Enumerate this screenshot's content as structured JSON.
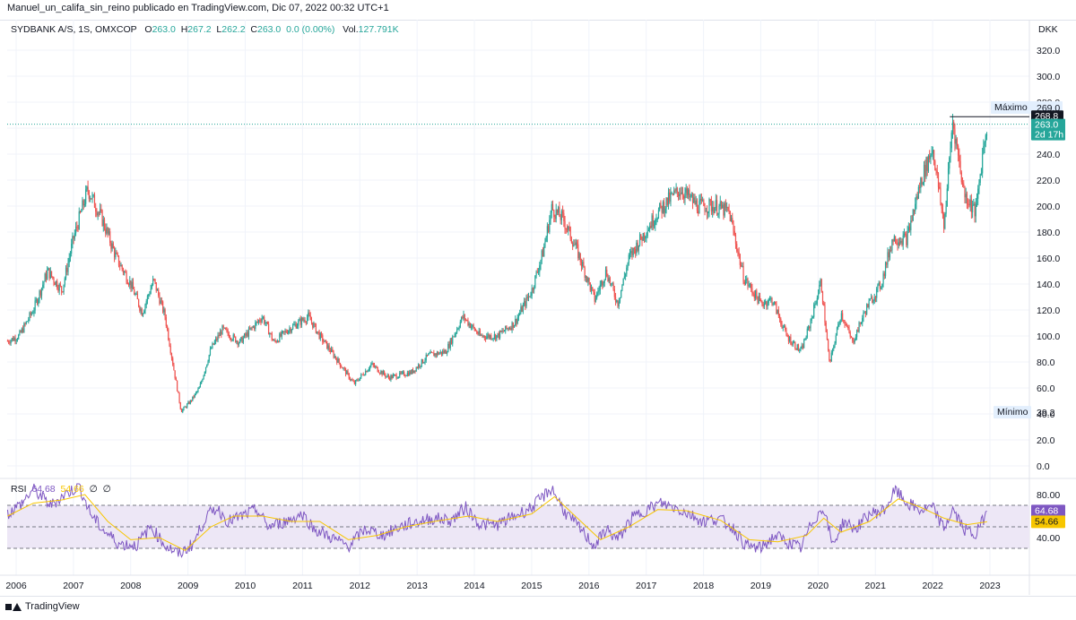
{
  "header": {
    "publisher_line": "Manuel_un_califa_sin_reino publicado en TradingView.com, Dic 07, 2022 00:32 UTC+1"
  },
  "legend": {
    "symbol": "SYDBANK A/S, 1S, OMXCOP",
    "o_label": "O",
    "o_value": "263.0",
    "h_label": "H",
    "h_value": "267.2",
    "l_label": "L",
    "l_value": "262.2",
    "c_label": "C",
    "c_value": "263.0",
    "change": "0.0 (0.00%)",
    "vol_label": "Vol.",
    "vol_value": "127.791K"
  },
  "rsi_legend": {
    "name": "RSI",
    "value": "64.68",
    "ma_value": "54.66",
    "ma_type": "∅",
    "extra": "∅"
  },
  "footer": {
    "brand": "TradingView"
  },
  "colors": {
    "up": "#26a69a",
    "down": "#ef5350",
    "rsi": "#7e57c2",
    "rsi_ma": "#f7c600",
    "band": "#ede7f6"
  },
  "chart_data": [
    {
      "type": "candlestick",
      "currency": "DKK",
      "ylim": [
        0,
        330
      ],
      "yticks": [
        "0.0",
        "20.0",
        "40.0",
        "60.0",
        "80.0",
        "100.0",
        "120.0",
        "140.0",
        "160.0",
        "180.0",
        "200.0",
        "220.0",
        "240.0",
        "260.0",
        "280.0",
        "300.0",
        "320.0"
      ],
      "x_labels": [
        "2006",
        "2007",
        "2008",
        "2009",
        "2010",
        "2011",
        "2012",
        "2013",
        "2014",
        "2015",
        "2016",
        "2017",
        "2018",
        "2019",
        "2020",
        "2021",
        "2022",
        "2023"
      ],
      "trend_points": [
        {
          "t": 2005.85,
          "price": 96
        },
        {
          "t": 2006.05,
          "price": 100
        },
        {
          "t": 2006.3,
          "price": 120
        },
        {
          "t": 2006.55,
          "price": 150
        },
        {
          "t": 2006.8,
          "price": 135
        },
        {
          "t": 2007.0,
          "price": 175
        },
        {
          "t": 2007.25,
          "price": 213
        },
        {
          "t": 2007.5,
          "price": 190
        },
        {
          "t": 2007.75,
          "price": 160
        },
        {
          "t": 2008.0,
          "price": 140
        },
        {
          "t": 2008.2,
          "price": 118
        },
        {
          "t": 2008.4,
          "price": 143
        },
        {
          "t": 2008.6,
          "price": 115
        },
        {
          "t": 2008.75,
          "price": 75
        },
        {
          "t": 2008.88,
          "price": 42
        },
        {
          "t": 2009.05,
          "price": 50
        },
        {
          "t": 2009.2,
          "price": 60
        },
        {
          "t": 2009.4,
          "price": 90
        },
        {
          "t": 2009.6,
          "price": 105
        },
        {
          "t": 2009.9,
          "price": 95
        },
        {
          "t": 2010.1,
          "price": 105
        },
        {
          "t": 2010.3,
          "price": 115
        },
        {
          "t": 2010.5,
          "price": 95
        },
        {
          "t": 2010.75,
          "price": 105
        },
        {
          "t": 2011.1,
          "price": 115
        },
        {
          "t": 2011.3,
          "price": 100
        },
        {
          "t": 2011.55,
          "price": 85
        },
        {
          "t": 2011.9,
          "price": 63
        },
        {
          "t": 2012.2,
          "price": 78
        },
        {
          "t": 2012.5,
          "price": 68
        },
        {
          "t": 2012.9,
          "price": 72
        },
        {
          "t": 2013.2,
          "price": 85
        },
        {
          "t": 2013.5,
          "price": 88
        },
        {
          "t": 2013.8,
          "price": 115
        },
        {
          "t": 2014.1,
          "price": 100
        },
        {
          "t": 2014.4,
          "price": 100
        },
        {
          "t": 2014.7,
          "price": 110
        },
        {
          "t": 2015.0,
          "price": 135
        },
        {
          "t": 2015.2,
          "price": 165
        },
        {
          "t": 2015.35,
          "price": 198
        },
        {
          "t": 2015.55,
          "price": 190
        },
        {
          "t": 2015.8,
          "price": 165
        },
        {
          "t": 2016.1,
          "price": 128
        },
        {
          "t": 2016.3,
          "price": 150
        },
        {
          "t": 2016.5,
          "price": 125
        },
        {
          "t": 2016.7,
          "price": 160
        },
        {
          "t": 2016.95,
          "price": 178
        },
        {
          "t": 2017.2,
          "price": 195
        },
        {
          "t": 2017.4,
          "price": 205
        },
        {
          "t": 2017.6,
          "price": 213
        },
        {
          "t": 2017.9,
          "price": 200
        },
        {
          "t": 2018.2,
          "price": 200
        },
        {
          "t": 2018.45,
          "price": 195
        },
        {
          "t": 2018.7,
          "price": 145
        },
        {
          "t": 2019.0,
          "price": 125
        },
        {
          "t": 2019.2,
          "price": 128
        },
        {
          "t": 2019.45,
          "price": 100
        },
        {
          "t": 2019.7,
          "price": 88
        },
        {
          "t": 2019.85,
          "price": 108
        },
        {
          "t": 2020.05,
          "price": 142
        },
        {
          "t": 2020.2,
          "price": 78
        },
        {
          "t": 2020.4,
          "price": 118
        },
        {
          "t": 2020.6,
          "price": 95
        },
        {
          "t": 2020.85,
          "price": 122
        },
        {
          "t": 2021.1,
          "price": 140
        },
        {
          "t": 2021.3,
          "price": 175
        },
        {
          "t": 2021.55,
          "price": 175
        },
        {
          "t": 2021.8,
          "price": 220
        },
        {
          "t": 2022.0,
          "price": 245
        },
        {
          "t": 2022.2,
          "price": 185
        },
        {
          "t": 2022.35,
          "price": 266
        },
        {
          "t": 2022.55,
          "price": 210
        },
        {
          "t": 2022.75,
          "price": 195
        },
        {
          "t": 2022.9,
          "price": 250
        },
        {
          "t": 2022.95,
          "price": 263
        }
      ],
      "price_labels": {
        "max_label": "Máximo",
        "max_value": "269.0",
        "high_line_value": "268.8",
        "last_value": "263.0",
        "countdown": "2d 17h",
        "min_label": "Mínimo",
        "min_value": "39.2"
      },
      "reference_levels": {
        "high_line": 268.8,
        "last_price": 263.0,
        "max": 269.0,
        "min": 39.2
      }
    },
    {
      "type": "line",
      "name": "RSI",
      "ylim": [
        20,
        95
      ],
      "yticks": [
        "40.00",
        "60.00",
        "80.00"
      ],
      "bands": {
        "upper": 70,
        "middle": 50,
        "lower": 30
      },
      "series": [
        {
          "name": "RSI",
          "points": [
            {
              "t": 2005.85,
              "v": 62
            },
            {
              "t": 2006.1,
              "v": 72
            },
            {
              "t": 2006.3,
              "v": 85
            },
            {
              "t": 2006.6,
              "v": 70
            },
            {
              "t": 2006.85,
              "v": 80
            },
            {
              "t": 2007.1,
              "v": 88
            },
            {
              "t": 2007.3,
              "v": 62
            },
            {
              "t": 2007.5,
              "v": 48
            },
            {
              "t": 2007.8,
              "v": 34
            },
            {
              "t": 2008.1,
              "v": 33
            },
            {
              "t": 2008.35,
              "v": 50
            },
            {
              "t": 2008.6,
              "v": 33
            },
            {
              "t": 2008.85,
              "v": 24
            },
            {
              "t": 2009.1,
              "v": 35
            },
            {
              "t": 2009.3,
              "v": 58
            },
            {
              "t": 2009.5,
              "v": 68
            },
            {
              "t": 2009.7,
              "v": 55
            },
            {
              "t": 2009.95,
              "v": 60
            },
            {
              "t": 2010.2,
              "v": 66
            },
            {
              "t": 2010.4,
              "v": 50
            },
            {
              "t": 2010.7,
              "v": 55
            },
            {
              "t": 2011.0,
              "v": 62
            },
            {
              "t": 2011.2,
              "v": 48
            },
            {
              "t": 2011.5,
              "v": 40
            },
            {
              "t": 2011.8,
              "v": 32
            },
            {
              "t": 2012.1,
              "v": 48
            },
            {
              "t": 2012.4,
              "v": 42
            },
            {
              "t": 2012.7,
              "v": 50
            },
            {
              "t": 2013.0,
              "v": 55
            },
            {
              "t": 2013.3,
              "v": 58
            },
            {
              "t": 2013.6,
              "v": 56
            },
            {
              "t": 2013.85,
              "v": 68
            },
            {
              "t": 2014.1,
              "v": 52
            },
            {
              "t": 2014.4,
              "v": 52
            },
            {
              "t": 2014.7,
              "v": 60
            },
            {
              "t": 2015.0,
              "v": 68
            },
            {
              "t": 2015.2,
              "v": 78
            },
            {
              "t": 2015.35,
              "v": 86
            },
            {
              "t": 2015.6,
              "v": 62
            },
            {
              "t": 2015.85,
              "v": 48
            },
            {
              "t": 2016.1,
              "v": 32
            },
            {
              "t": 2016.3,
              "v": 48
            },
            {
              "t": 2016.5,
              "v": 38
            },
            {
              "t": 2016.75,
              "v": 58
            },
            {
              "t": 2017.0,
              "v": 66
            },
            {
              "t": 2017.25,
              "v": 72
            },
            {
              "t": 2017.5,
              "v": 68
            },
            {
              "t": 2017.75,
              "v": 62
            },
            {
              "t": 2018.0,
              "v": 55
            },
            {
              "t": 2018.25,
              "v": 58
            },
            {
              "t": 2018.5,
              "v": 50
            },
            {
              "t": 2018.75,
              "v": 32
            },
            {
              "t": 2019.0,
              "v": 30
            },
            {
              "t": 2019.25,
              "v": 42
            },
            {
              "t": 2019.5,
              "v": 35
            },
            {
              "t": 2019.7,
              "v": 30
            },
            {
              "t": 2019.9,
              "v": 55
            },
            {
              "t": 2020.1,
              "v": 68
            },
            {
              "t": 2020.25,
              "v": 33
            },
            {
              "t": 2020.45,
              "v": 55
            },
            {
              "t": 2020.65,
              "v": 48
            },
            {
              "t": 2020.9,
              "v": 62
            },
            {
              "t": 2021.15,
              "v": 65
            },
            {
              "t": 2021.35,
              "v": 84
            },
            {
              "t": 2021.55,
              "v": 72
            },
            {
              "t": 2021.8,
              "v": 65
            },
            {
              "t": 2022.0,
              "v": 68
            },
            {
              "t": 2022.2,
              "v": 48
            },
            {
              "t": 2022.35,
              "v": 66
            },
            {
              "t": 2022.55,
              "v": 48
            },
            {
              "t": 2022.75,
              "v": 42
            },
            {
              "t": 2022.95,
              "v": 64.68
            }
          ]
        },
        {
          "name": "MA",
          "points": [
            {
              "t": 2005.85,
              "v": 60
            },
            {
              "t": 2006.3,
              "v": 72
            },
            {
              "t": 2006.8,
              "v": 75
            },
            {
              "t": 2007.2,
              "v": 80
            },
            {
              "t": 2007.6,
              "v": 55
            },
            {
              "t": 2008.0,
              "v": 38
            },
            {
              "t": 2008.5,
              "v": 40
            },
            {
              "t": 2008.95,
              "v": 28
            },
            {
              "t": 2009.4,
              "v": 50
            },
            {
              "t": 2009.8,
              "v": 60
            },
            {
              "t": 2010.3,
              "v": 60
            },
            {
              "t": 2010.8,
              "v": 55
            },
            {
              "t": 2011.3,
              "v": 55
            },
            {
              "t": 2011.8,
              "v": 38
            },
            {
              "t": 2012.3,
              "v": 42
            },
            {
              "t": 2012.8,
              "v": 50
            },
            {
              "t": 2013.3,
              "v": 55
            },
            {
              "t": 2013.9,
              "v": 60
            },
            {
              "t": 2014.4,
              "v": 55
            },
            {
              "t": 2015.0,
              "v": 62
            },
            {
              "t": 2015.4,
              "v": 78
            },
            {
              "t": 2015.8,
              "v": 58
            },
            {
              "t": 2016.2,
              "v": 38
            },
            {
              "t": 2016.7,
              "v": 50
            },
            {
              "t": 2017.2,
              "v": 66
            },
            {
              "t": 2017.7,
              "v": 65
            },
            {
              "t": 2018.3,
              "v": 56
            },
            {
              "t": 2018.8,
              "v": 38
            },
            {
              "t": 2019.3,
              "v": 36
            },
            {
              "t": 2019.8,
              "v": 42
            },
            {
              "t": 2020.1,
              "v": 58
            },
            {
              "t": 2020.4,
              "v": 45
            },
            {
              "t": 2020.9,
              "v": 55
            },
            {
              "t": 2021.4,
              "v": 76
            },
            {
              "t": 2021.8,
              "v": 68
            },
            {
              "t": 2022.2,
              "v": 58
            },
            {
              "t": 2022.6,
              "v": 52
            },
            {
              "t": 2022.95,
              "v": 54.66
            }
          ]
        }
      ],
      "last_values": {
        "rsi": "64.68",
        "ma": "54.66"
      }
    }
  ]
}
